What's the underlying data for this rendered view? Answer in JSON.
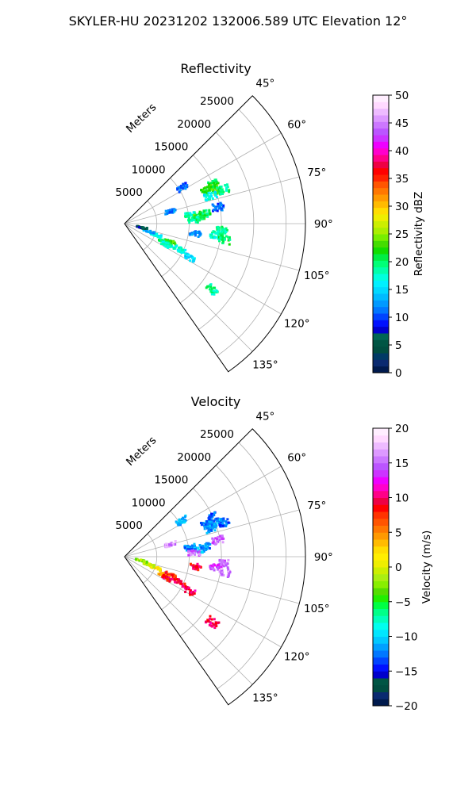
{
  "figure": {
    "title": "SKYLER-HU  20231202  132006.589 UTC Elevation 12°"
  },
  "chart_data": [
    {
      "type": "heatmap",
      "projection": "polar-sector",
      "title": "Reflectivity",
      "range_label": "Meters",
      "azimuth_range_deg": [
        45,
        145
      ],
      "range_lim_m": [
        0,
        28000
      ],
      "azimuth_ticks": [
        "45°",
        "60°",
        "75°",
        "90°",
        "105°",
        "120°",
        "135°"
      ],
      "range_ticks": [
        "5000",
        "10000",
        "15000",
        "20000",
        "25000"
      ],
      "grid": true,
      "colorbar": {
        "label": "Reflectivity dBZ",
        "min": 0,
        "max": 50,
        "ticks": [
          "0",
          "5",
          "10",
          "15",
          "20",
          "25",
          "30",
          "35",
          "40",
          "45",
          "50"
        ],
        "colors": [
          "#001a4d",
          "#0a2a70",
          "#003a66",
          "#004d40",
          "#005544",
          "#006655",
          "#0000cc",
          "#0011ff",
          "#0044ff",
          "#0077ff",
          "#0099ff",
          "#00bbff",
          "#00d9ff",
          "#00f0ff",
          "#00ffdd",
          "#00ffaa",
          "#00ff77",
          "#00ee44",
          "#11dd00",
          "#44dd00",
          "#77ee00",
          "#aaee00",
          "#ccee00",
          "#eeee00",
          "#ffdd00",
          "#ffbb00",
          "#ff9900",
          "#ff7700",
          "#ff5500",
          "#ff2200",
          "#ff0000",
          "#ee0044",
          "#ff0088",
          "#ff00cc",
          "#ee00ff",
          "#cc33ff",
          "#bb55ff",
          "#cc77ff",
          "#dd99ff",
          "#eebbff",
          "#ffd9ff",
          "#ffeeff"
        ]
      },
      "cells": [
        {
          "az": 68,
          "r": 13800,
          "v": 22
        },
        {
          "az": 66,
          "r": 14900,
          "v": 21
        },
        {
          "az": 70,
          "r": 15300,
          "v": 23
        },
        {
          "az": 72,
          "r": 14000,
          "v": 17
        },
        {
          "az": 71,
          "r": 16200,
          "v": 19
        },
        {
          "az": 82,
          "r": 10300,
          "v": 18
        },
        {
          "az": 85,
          "r": 11600,
          "v": 22
        },
        {
          "az": 87,
          "r": 10800,
          "v": 19
        },
        {
          "az": 83,
          "r": 12500,
          "v": 20
        },
        {
          "az": 94,
          "r": 15200,
          "v": 19
        },
        {
          "az": 97,
          "r": 14200,
          "v": 18
        },
        {
          "az": 99,
          "r": 15700,
          "v": 20
        },
        {
          "az": 112,
          "r": 7600,
          "v": 22
        },
        {
          "az": 115,
          "r": 6800,
          "v": 20
        },
        {
          "az": 117,
          "r": 7400,
          "v": 18
        },
        {
          "az": 110,
          "r": 5200,
          "v": 16
        },
        {
          "az": 108,
          "r": 4000,
          "v": 13
        },
        {
          "az": 103,
          "r": 2700,
          "v": 6
        },
        {
          "az": 115,
          "r": 9400,
          "v": 17
        },
        {
          "az": 118,
          "r": 11400,
          "v": 15
        },
        {
          "az": 127,
          "r": 17000,
          "v": 19
        },
        {
          "az": 75,
          "r": 7400,
          "v": 12
        },
        {
          "az": 98,
          "r": 11100,
          "v": 12
        },
        {
          "az": 80,
          "r": 14700,
          "v": 11
        },
        {
          "az": 58,
          "r": 10500,
          "v": 11
        }
      ]
    },
    {
      "type": "heatmap",
      "projection": "polar-sector",
      "title": "Velocity",
      "range_label": "Meters",
      "azimuth_range_deg": [
        45,
        145
      ],
      "range_lim_m": [
        0,
        28000
      ],
      "azimuth_ticks": [
        "45°",
        "60°",
        "75°",
        "90°",
        "105°",
        "120°",
        "135°"
      ],
      "range_ticks": [
        "5000",
        "10000",
        "15000",
        "20000",
        "25000"
      ],
      "grid": true,
      "colorbar": {
        "label": "Velocity (m/s)",
        "min": -20,
        "max": 20,
        "ticks": [
          "−20",
          "−15",
          "−10",
          "−5",
          "0",
          "5",
          "10",
          "15",
          "20"
        ],
        "colors": [
          "#001a4d",
          "#0a2a70",
          "#004d40",
          "#005544",
          "#0000cc",
          "#0011ff",
          "#0044ff",
          "#0077ff",
          "#00a0ff",
          "#00c8ff",
          "#00e6ff",
          "#00ffee",
          "#00ffbb",
          "#00ff88",
          "#00ff44",
          "#22ee00",
          "#55dd00",
          "#88ee00",
          "#aaee11",
          "#ccee00",
          "#eeee00",
          "#ffee00",
          "#ffdd00",
          "#ffbb00",
          "#ff9900",
          "#ff7700",
          "#ff5500",
          "#ff3300",
          "#ff0000",
          "#ee0044",
          "#ff0088",
          "#ff00cc",
          "#ee00ff",
          "#cc33ff",
          "#bb55ff",
          "#cc77ff",
          "#dd99ff",
          "#eebbff",
          "#ffd9ff",
          "#ffeeff"
        ]
      },
      "cells": [
        {
          "az": 68,
          "r": 13800,
          "v": -12
        },
        {
          "az": 66,
          "r": 14900,
          "v": -13
        },
        {
          "az": 70,
          "r": 15300,
          "v": -11
        },
        {
          "az": 72,
          "r": 14000,
          "v": -12
        },
        {
          "az": 71,
          "r": 16200,
          "v": -13
        },
        {
          "az": 82,
          "r": 10300,
          "v": -12
        },
        {
          "az": 85,
          "r": 11600,
          "v": -11
        },
        {
          "az": 87,
          "r": 10800,
          "v": 15
        },
        {
          "az": 83,
          "r": 12500,
          "v": -12
        },
        {
          "az": 94,
          "r": 15200,
          "v": 15
        },
        {
          "az": 97,
          "r": 14200,
          "v": 14
        },
        {
          "az": 99,
          "r": 15700,
          "v": 16
        },
        {
          "az": 112,
          "r": 7600,
          "v": 8
        },
        {
          "az": 115,
          "r": 6800,
          "v": 5
        },
        {
          "az": 117,
          "r": 7400,
          "v": 9
        },
        {
          "az": 110,
          "r": 5200,
          "v": 2
        },
        {
          "az": 108,
          "r": 4000,
          "v": 0
        },
        {
          "az": 103,
          "r": 2700,
          "v": -2
        },
        {
          "az": 115,
          "r": 9400,
          "v": 9
        },
        {
          "az": 118,
          "r": 11400,
          "v": 10
        },
        {
          "az": 127,
          "r": 17000,
          "v": 10
        },
        {
          "az": 75,
          "r": 7400,
          "v": 16
        },
        {
          "az": 98,
          "r": 11100,
          "v": 9
        },
        {
          "az": 80,
          "r": 14700,
          "v": 15
        },
        {
          "az": 58,
          "r": 10500,
          "v": -11
        }
      ]
    }
  ]
}
